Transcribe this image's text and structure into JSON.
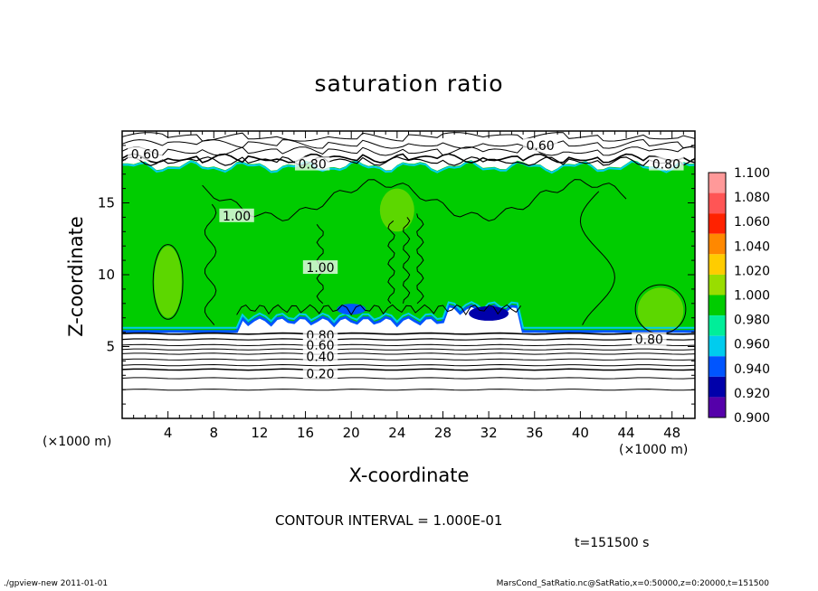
{
  "chart_data": {
    "type": "heatmap",
    "title": "saturation ratio",
    "xlabel": "X-coordinate",
    "ylabel": "Z-coordinate",
    "x_unit": "(×1000 m)",
    "z_unit": "(×1000 m)",
    "xlim": [
      0,
      50
    ],
    "ylim": [
      0,
      20
    ],
    "x_ticks": [
      "4",
      "8",
      "12",
      "16",
      "20",
      "24",
      "28",
      "32",
      "36",
      "40",
      "44",
      "48"
    ],
    "x_tick_values": [
      4,
      8,
      12,
      16,
      20,
      24,
      28,
      32,
      36,
      40,
      44,
      48
    ],
    "y_ticks": [
      "5",
      "10",
      "15"
    ],
    "y_tick_values": [
      5,
      10,
      15
    ],
    "colorbar": {
      "levels": [
        "1.100",
        "1.080",
        "1.060",
        "1.040",
        "1.020",
        "1.000",
        "0.980",
        "0.960",
        "0.940",
        "0.920",
        "0.900"
      ],
      "colors": [
        "#ff9999",
        "#ff5555",
        "#ff2200",
        "#ff8800",
        "#ffcc00",
        "#99dd00",
        "#00cc00",
        "#00ee99",
        "#00ccee",
        "#0055ff",
        "#0000aa",
        "#5500aa"
      ]
    },
    "contour_labels": [
      {
        "text": "0.60",
        "x": 2.0,
        "z": 18.4
      },
      {
        "text": "0.60",
        "x": 36.5,
        "z": 19.0
      },
      {
        "text": "0.80",
        "x": 16.6,
        "z": 17.7
      },
      {
        "text": "0.80",
        "x": 47.5,
        "z": 17.7
      },
      {
        "text": "1.00",
        "x": 10.0,
        "z": 14.1
      },
      {
        "text": "1.00",
        "x": 17.3,
        "z": 10.5
      },
      {
        "text": "0.80",
        "x": 17.3,
        "z": 5.8
      },
      {
        "text": "0.80",
        "x": 46.0,
        "z": 5.5
      },
      {
        "text": "0.60",
        "x": 17.3,
        "z": 5.1
      },
      {
        "text": "0.40",
        "x": 17.3,
        "z": 4.3
      },
      {
        "text": "0.20",
        "x": 17.3,
        "z": 3.1
      }
    ],
    "contour_interval": "CONTOUR INTERVAL = 1.000E-01",
    "time": "t=151500 s",
    "grid": false
  },
  "footer": {
    "left": "./gpview-new   2011-01-01",
    "right": "MarsCond_SatRatio.nc@SatRatio,x=0:50000,z=0:20000,t=151500"
  }
}
